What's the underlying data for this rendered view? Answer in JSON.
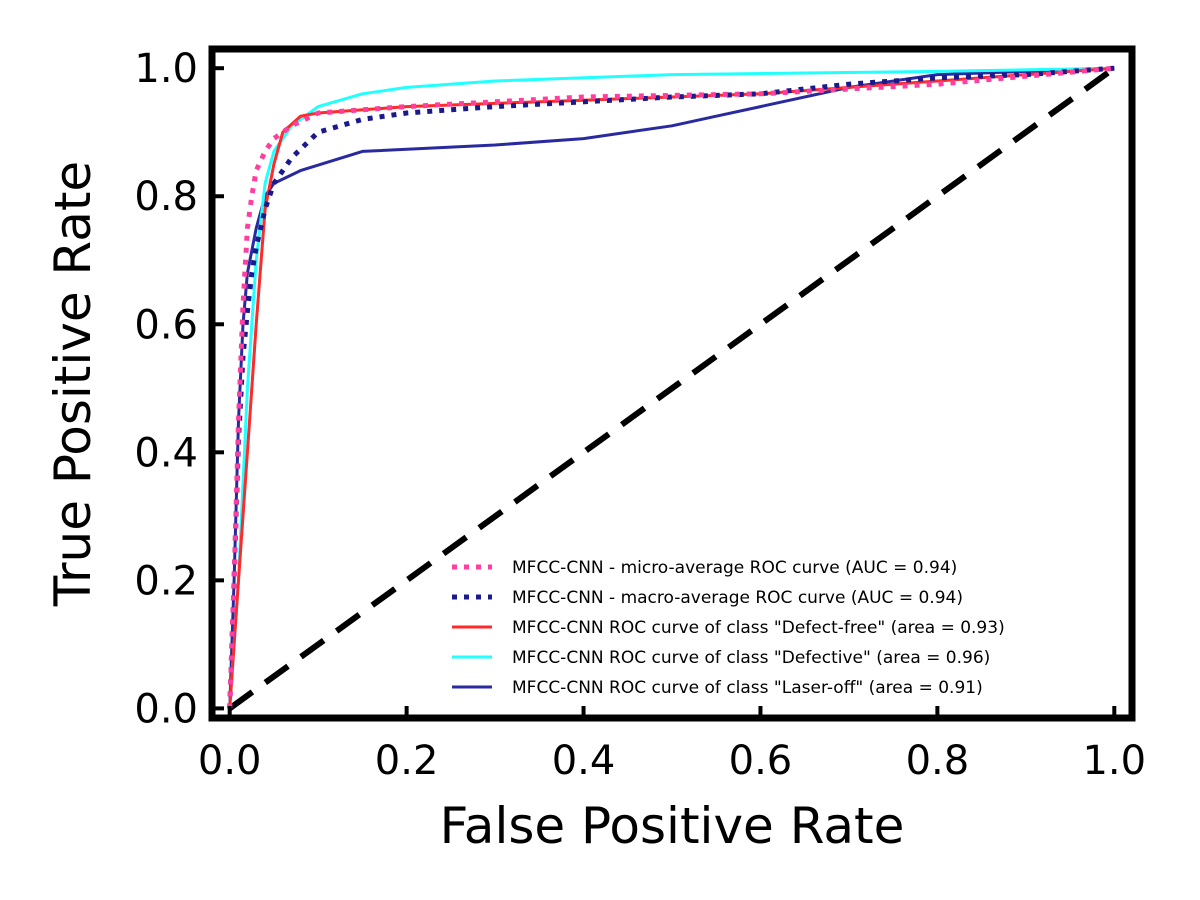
{
  "chart_data": {
    "type": "line",
    "title": "",
    "xlabel": "False Positive Rate",
    "ylabel": "True Positive Rate",
    "xlim": [
      -0.02,
      1.02
    ],
    "ylim": [
      -0.015,
      1.03
    ],
    "xticks": [
      "0.0",
      "0.2",
      "0.4",
      "0.6",
      "0.8",
      "1.0"
    ],
    "yticks": [
      "0.0",
      "0.2",
      "0.4",
      "0.6",
      "0.8",
      "1.0"
    ],
    "grid": false,
    "legend_position": "lower-right",
    "series": [
      {
        "name": "MFCC-CNN - micro-average ROC curve (AUC = 0.94)",
        "color": "#ff3fa0",
        "style": "dotted",
        "points": [
          [
            0,
            0
          ],
          [
            0.005,
            0.2
          ],
          [
            0.01,
            0.45
          ],
          [
            0.015,
            0.63
          ],
          [
            0.02,
            0.75
          ],
          [
            0.025,
            0.8
          ],
          [
            0.03,
            0.84
          ],
          [
            0.04,
            0.87
          ],
          [
            0.05,
            0.89
          ],
          [
            0.07,
            0.91
          ],
          [
            0.1,
            0.93
          ],
          [
            0.2,
            0.94
          ],
          [
            0.4,
            0.955
          ],
          [
            0.6,
            0.96
          ],
          [
            0.8,
            0.975
          ],
          [
            1,
            1
          ]
        ]
      },
      {
        "name": "MFCC-CNN - macro-average ROC curve (AUC = 0.94)",
        "color": "#1a1a8c",
        "style": "dotted",
        "points": [
          [
            0,
            0
          ],
          [
            0.005,
            0.2
          ],
          [
            0.01,
            0.42
          ],
          [
            0.015,
            0.55
          ],
          [
            0.02,
            0.62
          ],
          [
            0.025,
            0.68
          ],
          [
            0.03,
            0.72
          ],
          [
            0.04,
            0.78
          ],
          [
            0.05,
            0.82
          ],
          [
            0.07,
            0.86
          ],
          [
            0.1,
            0.9
          ],
          [
            0.15,
            0.92
          ],
          [
            0.2,
            0.93
          ],
          [
            0.3,
            0.94
          ],
          [
            0.5,
            0.955
          ],
          [
            0.6,
            0.96
          ],
          [
            0.7,
            0.975
          ],
          [
            0.8,
            0.985
          ],
          [
            0.9,
            0.99
          ],
          [
            1,
            1
          ]
        ]
      },
      {
        "name": "MFCC-CNN ROC curve of class \"Defect-free\" (area = 0.93)",
        "color": "#ff2a2a",
        "style": "solid",
        "points": [
          [
            0,
            0
          ],
          [
            0.01,
            0.2
          ],
          [
            0.02,
            0.4
          ],
          [
            0.03,
            0.6
          ],
          [
            0.04,
            0.78
          ],
          [
            0.05,
            0.85
          ],
          [
            0.06,
            0.9
          ],
          [
            0.08,
            0.925
          ],
          [
            0.1,
            0.93
          ],
          [
            0.2,
            0.94
          ],
          [
            0.4,
            0.95
          ],
          [
            0.6,
            0.96
          ],
          [
            0.8,
            0.98
          ],
          [
            1,
            1
          ]
        ]
      },
      {
        "name": "MFCC-CNN ROC curve of class \"Defective\" (area = 0.96)",
        "color": "#22ffff",
        "style": "solid",
        "points": [
          [
            0,
            0
          ],
          [
            0.01,
            0.2
          ],
          [
            0.02,
            0.5
          ],
          [
            0.03,
            0.7
          ],
          [
            0.04,
            0.82
          ],
          [
            0.05,
            0.87
          ],
          [
            0.07,
            0.91
          ],
          [
            0.1,
            0.94
          ],
          [
            0.15,
            0.96
          ],
          [
            0.2,
            0.97
          ],
          [
            0.3,
            0.98
          ],
          [
            0.5,
            0.99
          ],
          [
            0.8,
            0.995
          ],
          [
            1,
            1
          ]
        ]
      },
      {
        "name": "MFCC-CNN ROC curve of class \"Laser-off\" (area = 0.91)",
        "color": "#2a2aa0",
        "style": "solid",
        "points": [
          [
            0,
            0
          ],
          [
            0.005,
            0.2
          ],
          [
            0.01,
            0.45
          ],
          [
            0.015,
            0.6
          ],
          [
            0.02,
            0.68
          ],
          [
            0.03,
            0.75
          ],
          [
            0.04,
            0.8
          ],
          [
            0.05,
            0.82
          ],
          [
            0.08,
            0.84
          ],
          [
            0.15,
            0.87
          ],
          [
            0.3,
            0.88
          ],
          [
            0.4,
            0.89
          ],
          [
            0.5,
            0.91
          ],
          [
            0.55,
            0.925
          ],
          [
            0.6,
            0.94
          ],
          [
            0.7,
            0.97
          ],
          [
            0.8,
            0.99
          ],
          [
            0.9,
            0.995
          ],
          [
            1,
            1
          ]
        ]
      },
      {
        "name": "",
        "color": "#000000",
        "style": "dashed",
        "points": [
          [
            0,
            0
          ],
          [
            1,
            1
          ]
        ]
      }
    ]
  }
}
